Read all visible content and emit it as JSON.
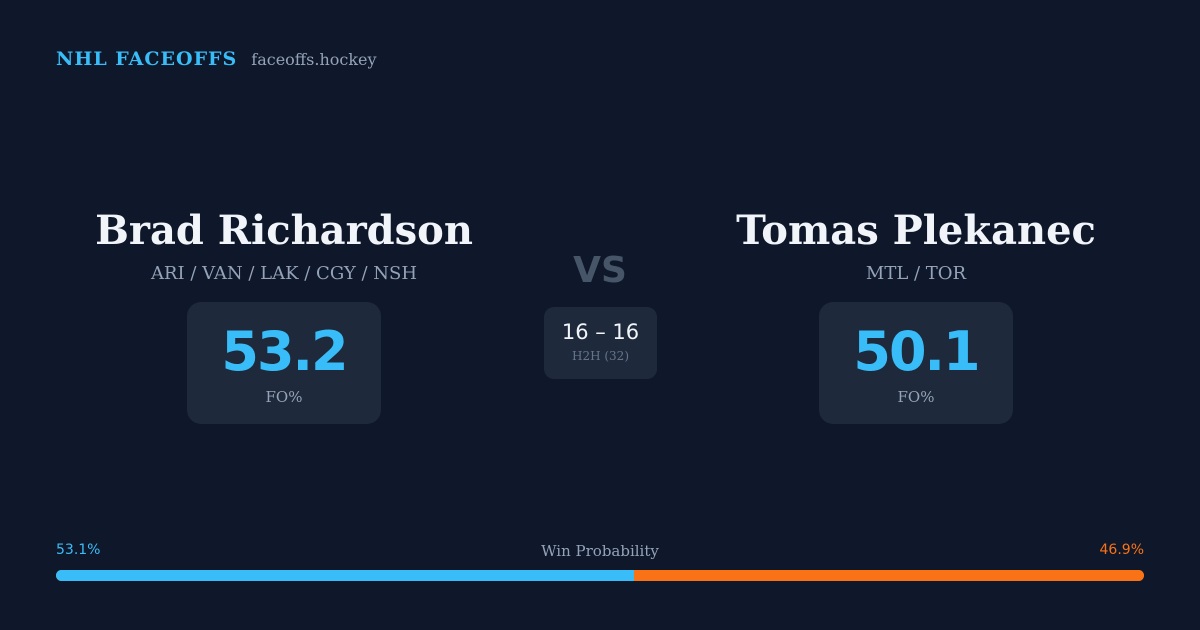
{
  "brand": {
    "name": "NHL FACEOFFS",
    "site": "faceoffs.hockey"
  },
  "player1": {
    "name": "Brad Richardson",
    "teams": "ARI / VAN / LAK / CGY / NSH",
    "stat_value": "53.2",
    "stat_label": "FO%"
  },
  "player2": {
    "name": "Tomas Plekanec",
    "teams": "MTL / TOR",
    "stat_value": "50.1",
    "stat_label": "FO%"
  },
  "vs_label": "VS",
  "h2h": {
    "record": "16 – 16",
    "label": "H2H (32)"
  },
  "win_probability": {
    "title": "Win Probability",
    "left_text": "53.1%",
    "right_text": "46.9%",
    "left_value": 53.1,
    "right_value": 46.9
  },
  "colors": {
    "background": "#0f172a",
    "card": "#1e293b",
    "accent_blue": "#38bdf8",
    "accent_orange": "#f97316",
    "muted": "#94a3b8"
  }
}
